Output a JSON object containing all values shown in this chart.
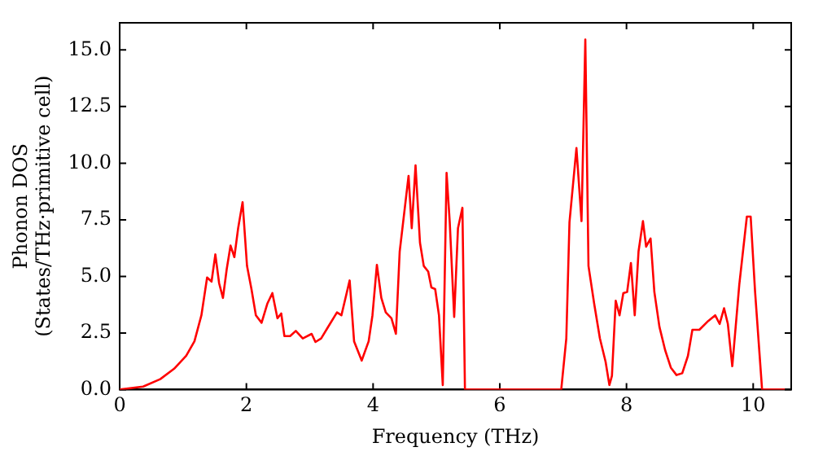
{
  "chart_data": {
    "type": "line",
    "xlabel": "Frequency (THz)",
    "ylabel": "Phonon DOS\n(States/THz·primitive cell)",
    "xlim": [
      0,
      10.6
    ],
    "ylim": [
      0,
      16.2
    ],
    "xticks": [
      0,
      2,
      4,
      6,
      8,
      10
    ],
    "yticks": [
      {
        "value": 0,
        "label": "0.0"
      },
      {
        "value": 2.5,
        "label": "2.5"
      },
      {
        "value": 5,
        "label": "5.0"
      },
      {
        "value": 7.5,
        "label": "7.5"
      },
      {
        "value": 10,
        "label": "10.0"
      },
      {
        "value": 12.5,
        "label": "12.5"
      },
      {
        "value": 15,
        "label": "15.0"
      }
    ],
    "grid": false,
    "legend": false,
    "marker": "none",
    "line_style": "solid",
    "series": [
      {
        "color": "#ff0000",
        "x": [
          0,
          0.37,
          0.64,
          0.86,
          1.05,
          1.18,
          1.29,
          1.38,
          1.45,
          1.51,
          1.57,
          1.63,
          1.69,
          1.75,
          1.81,
          1.87,
          1.94,
          2.01,
          2.08,
          2.15,
          2.24,
          2.33,
          2.41,
          2.49,
          2.55,
          2.6,
          2.69,
          2.78,
          2.89,
          3.03,
          3.09,
          3.18,
          3.28,
          3.43,
          3.5,
          3.63,
          3.7,
          3.82,
          3.93,
          3.99,
          4.06,
          4.13,
          4.2,
          4.29,
          4.36,
          4.42,
          4.56,
          4.61,
          4.67,
          4.74,
          4.8,
          4.87,
          4.92,
          4.98,
          5.04,
          5.1,
          5.16,
          5.21,
          5.28,
          5.34,
          5.41,
          5.45,
          6.97,
          7.05,
          7.1,
          7.21,
          7.29,
          7.35,
          7.4,
          7.49,
          7.58,
          7.67,
          7.73,
          7.77,
          7.83,
          7.89,
          7.95,
          8.01,
          8.07,
          8.13,
          8.19,
          8.26,
          8.31,
          8.38,
          8.44,
          8.52,
          8.61,
          8.7,
          8.79,
          8.88,
          8.97,
          9.04,
          9.15,
          9.29,
          9.4,
          9.47,
          9.54,
          9.6,
          9.67,
          9.78,
          9.9,
          9.96,
          10.03,
          10.14,
          10.5
        ],
        "values": [
          0,
          0.13,
          0.46,
          0.92,
          1.49,
          2.13,
          3.28,
          4.95,
          4.77,
          5.97,
          4.69,
          4.05,
          5.33,
          6.36,
          5.85,
          7.13,
          8.28,
          5.46,
          4.44,
          3.28,
          2.95,
          3.79,
          4.26,
          3.15,
          3.36,
          2.36,
          2.36,
          2.59,
          2.26,
          2.46,
          2.1,
          2.26,
          2.72,
          3.41,
          3.28,
          4.82,
          2.13,
          1.28,
          2.13,
          3.28,
          5.51,
          4.05,
          3.41,
          3.15,
          2.46,
          6.1,
          9.44,
          7.13,
          9.9,
          6.49,
          5.46,
          5.21,
          4.51,
          4.44,
          3.28,
          0.2,
          9.57,
          7.39,
          3.21,
          7.13,
          8.03,
          0,
          0,
          2.26,
          7.39,
          10.67,
          7.44,
          15.46,
          5.46,
          3.79,
          2.26,
          1.23,
          0.2,
          0.6,
          3.92,
          3.28,
          4.26,
          4.31,
          5.59,
          3.28,
          6.1,
          7.44,
          6.31,
          6.67,
          4.31,
          2.77,
          1.74,
          0.97,
          0.64,
          0.72,
          1.49,
          2.64,
          2.64,
          3.03,
          3.28,
          2.9,
          3.59,
          2.9,
          1.03,
          4.62,
          7.64,
          7.64,
          4.31,
          0,
          0
        ]
      }
    ]
  }
}
